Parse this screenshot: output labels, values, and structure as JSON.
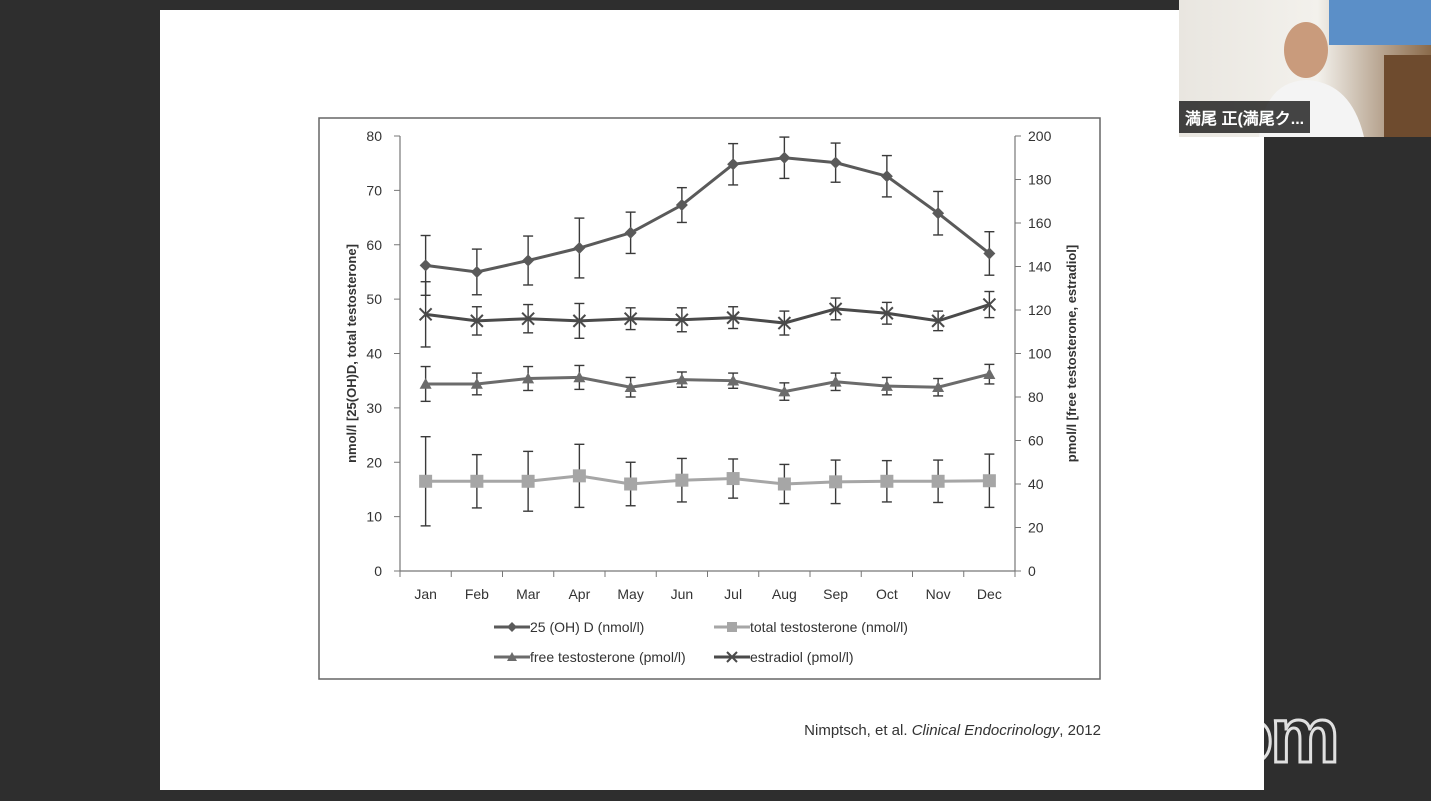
{
  "chart_data": {
    "type": "line",
    "categories": [
      "Jan",
      "Feb",
      "Mar",
      "Apr",
      "May",
      "Jun",
      "Jul",
      "Aug",
      "Sep",
      "Oct",
      "Nov",
      "Dec"
    ],
    "ylabel_left": "nmol/l [25(OH)D, total testosterone]",
    "ylabel_right": "pmol/l [free testosterone, estradiol]",
    "ylim_left": [
      0,
      80
    ],
    "ylim_right": [
      0,
      200
    ],
    "yticks_left": [
      0,
      10,
      20,
      30,
      40,
      50,
      60,
      70,
      80
    ],
    "yticks_right": [
      0,
      20,
      40,
      60,
      80,
      100,
      120,
      140,
      160,
      180,
      200
    ],
    "grid": false,
    "legend_position": "bottom",
    "series": [
      {
        "name": "25 (OH)  D (nmol/l)",
        "axis": "left",
        "marker": "diamond",
        "color": "#5a5a5a",
        "values": [
          56.2,
          55.0,
          57.1,
          59.4,
          62.2,
          67.3,
          74.8,
          76.0,
          75.1,
          72.6,
          65.8,
          58.4
        ],
        "errors": [
          5.5,
          4.2,
          4.5,
          5.5,
          3.8,
          3.2,
          3.8,
          3.8,
          3.6,
          3.8,
          4.0,
          4.0
        ]
      },
      {
        "name": "total testosterone  (nmol/l)",
        "axis": "left",
        "marker": "square",
        "color": "#a6a6a6",
        "values": [
          16.5,
          16.5,
          16.5,
          17.5,
          16.0,
          16.7,
          17.0,
          16.0,
          16.4,
          16.5,
          16.5,
          16.6
        ],
        "errors": [
          8.2,
          4.9,
          5.5,
          5.8,
          4.0,
          4.0,
          3.6,
          3.6,
          4.0,
          3.8,
          3.9,
          4.9
        ]
      },
      {
        "name": "free testosterone  (pmol/l)",
        "axis": "right",
        "marker": "triangle",
        "color": "#6b6b6b",
        "values": [
          86,
          86,
          88.5,
          89,
          84.5,
          88,
          87.5,
          82.5,
          87,
          85,
          84.5,
          90.5
        ],
        "errors": [
          8,
          5,
          5.5,
          5.5,
          4.5,
          3.5,
          3.5,
          4,
          4,
          4,
          4,
          4.5
        ]
      },
      {
        "name": "estradiol (pmol/l)",
        "axis": "right",
        "marker": "x",
        "color": "#4a4a4a",
        "values": [
          118,
          115,
          116,
          115,
          116,
          115.5,
          116.5,
          114,
          120.5,
          118.5,
          115,
          122.5
        ],
        "errors": [
          15,
          6.5,
          6.5,
          8,
          5,
          5.5,
          5,
          5.5,
          5,
          5,
          4.5,
          6
        ]
      }
    ]
  },
  "citation": {
    "authors": "Nimptsch, et al.",
    "journal": "Clinical Endocrinology",
    "year": ", 2012"
  },
  "video": {
    "participant_name": "満尾 正(満尾ク..."
  },
  "zoom_logo": "zoom"
}
